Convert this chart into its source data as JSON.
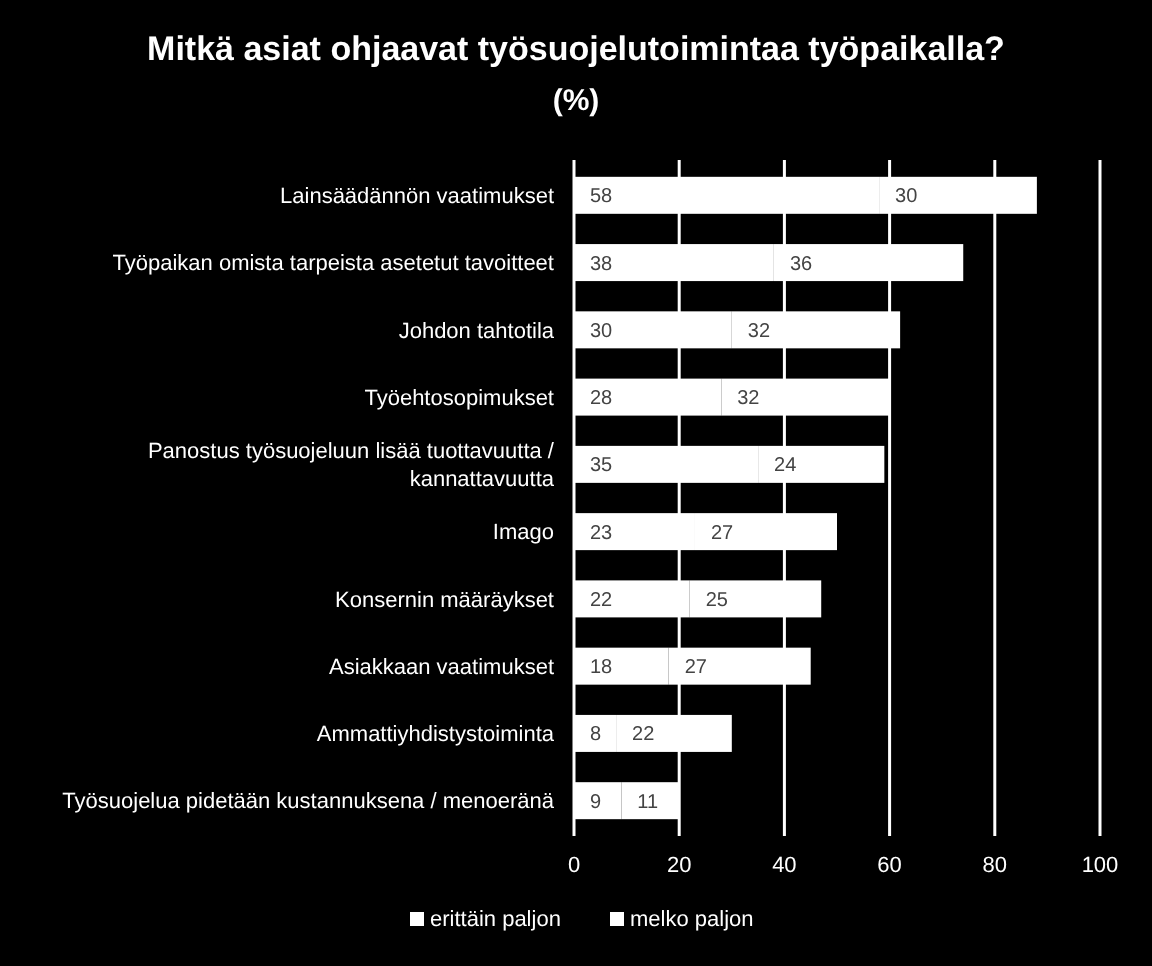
{
  "chart_data": {
    "type": "bar",
    "orientation": "horizontal",
    "stacked": true,
    "title": "Mitkä asiat ohjaavat työsuojelutoimintaa työpaikalla?",
    "subtitle": "(%)",
    "categories": [
      "Lainsäädännön vaatimukset",
      "Työpaikan omista tarpeista asetetut tavoitteet",
      "Johdon tahtotila",
      "Työehtosopimukset",
      "Panostus työsuojeluun lisää tuottavuutta / kannattavuutta",
      "Imago",
      "Konsernin määräykset",
      "Asiakkaan vaatimukset",
      "Ammattiyhdistystoiminta",
      "Työsuojelua pidetään kustannuksena / menoeränä"
    ],
    "series": [
      {
        "name": "erittäin paljon",
        "color": "#ffffff",
        "values": [
          58,
          38,
          30,
          28,
          35,
          23,
          22,
          18,
          8,
          9
        ]
      },
      {
        "name": "melko paljon",
        "color": "#ffffff",
        "values": [
          30,
          36,
          32,
          32,
          24,
          27,
          25,
          27,
          22,
          11
        ]
      }
    ],
    "xlim": [
      0,
      100
    ],
    "xticks": [
      0,
      20,
      40,
      60,
      80,
      100
    ],
    "grid": "x",
    "legend": "bottom",
    "data_labels": true
  }
}
